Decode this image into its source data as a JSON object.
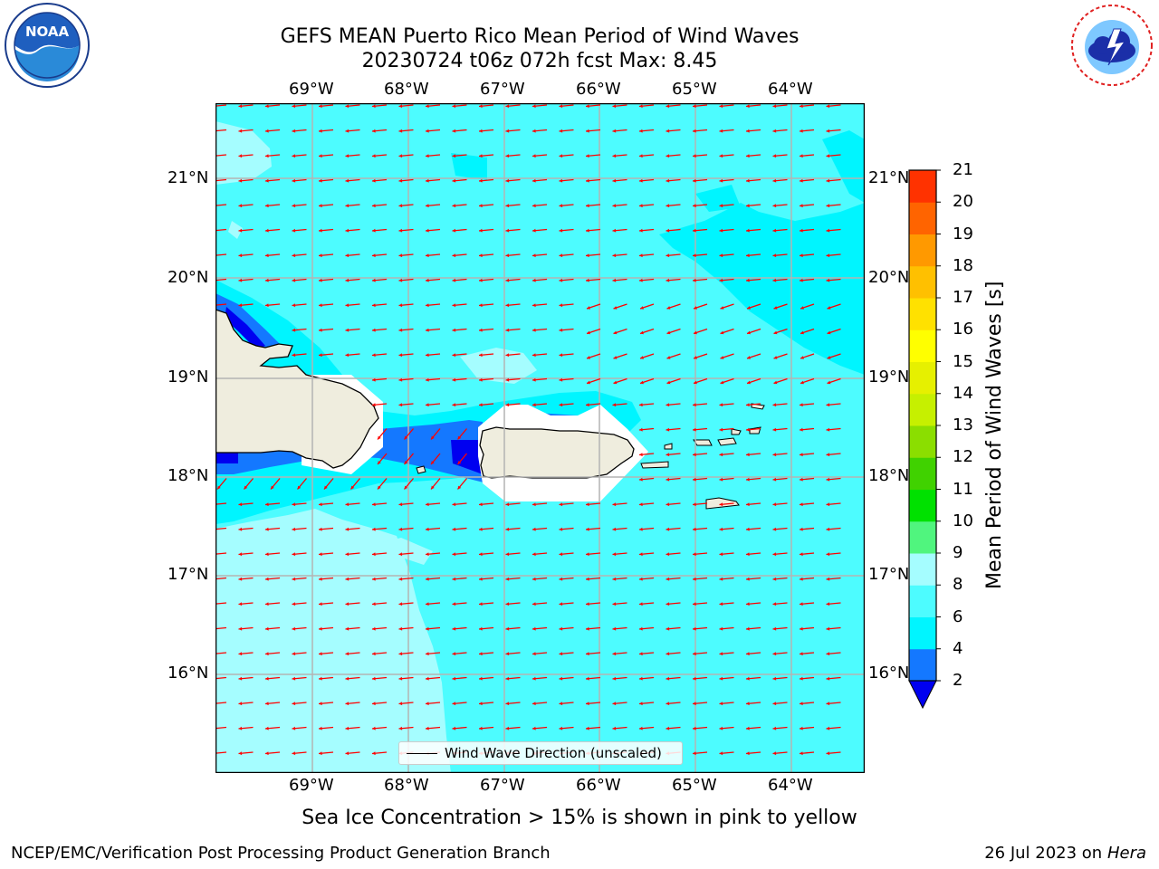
{
  "title_line1": "GEFS MEAN Puerto Rico Mean Period of Wind Waves",
  "title_line2": "20230724 t06z 072h fcst   Max: 8.45",
  "logos": {
    "left": "noaa-logo",
    "right": "national-weather-service-logo"
  },
  "map": {
    "lon_labels": [
      "69°W",
      "68°W",
      "67°W",
      "66°W",
      "65°W",
      "64°W"
    ],
    "lat_labels": [
      "21°N",
      "20°N",
      "19°N",
      "18°N",
      "17°N",
      "16°N"
    ],
    "colors": {
      "ocean_base": "#4dfcff",
      "ocean_light": "#a5fdff",
      "ocean_cyan": "#00f5ff",
      "band_blue": "#1478ff",
      "band_dark": "#0000f0",
      "land": "#efedde",
      "arrows": "#ff0000",
      "grid": "#b4b4b4"
    }
  },
  "legend": {
    "label": "Wind Wave Direction (unscaled)"
  },
  "colorbar": {
    "title": "Mean Period of Wind Waves [s]",
    "ticks": [
      "2",
      "4",
      "6",
      "8",
      "9",
      "10",
      "11",
      "12",
      "13",
      "14",
      "15",
      "16",
      "17",
      "18",
      "19",
      "20",
      "21"
    ],
    "colors": [
      "#1478ff",
      "#00f5ff",
      "#4dfcff",
      "#a5fdff",
      "#50f57e",
      "#00e100",
      "#40d200",
      "#8bde00",
      "#c6f000",
      "#e6f000",
      "#ffff00",
      "#ffe100",
      "#ffc000",
      "#ff9900",
      "#ff6400",
      "#ff3200",
      "#ff0000"
    ],
    "under_color": "#0000f0"
  },
  "subtitle": "Sea Ice Concentration > 15% is shown in pink to yellow",
  "footer": {
    "left": "NCEP/EMC/Verification Post Processing Product Generation Branch",
    "date": "26 Jul 2023 on ",
    "machine": "Hera"
  }
}
